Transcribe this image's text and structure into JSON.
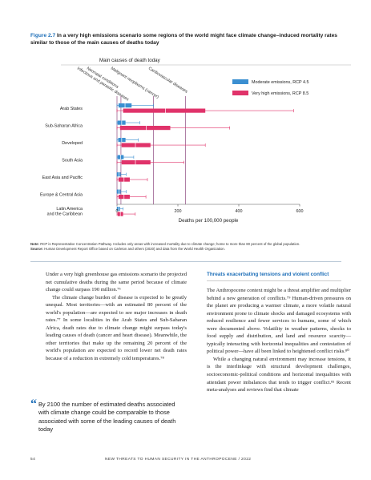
{
  "figure": {
    "number": "Figure 2.7",
    "title": "In a very high emissions scenario some regions of the world might face climate change–induced mortality rates similar to those of the main causes of deaths today"
  },
  "chart_data": {
    "type": "bar",
    "orientation": "horizontal",
    "xlabel": "Deaths per 100,000 people",
    "xlim": [
      0,
      600
    ],
    "xticks": [
      0,
      200,
      400,
      600
    ],
    "categories": [
      "Arab States",
      "Sub-Saharan Africa",
      "Developed",
      "South Asia",
      "East Asia and Pacific",
      "Europe & Central Asia",
      "Latin America and the Caribbean"
    ],
    "series": [
      {
        "name": "Moderate emissions, RCP 4.5",
        "color": "#3b8fd1",
        "values": [
          48,
          28,
          28,
          22,
          12,
          12,
          10
        ],
        "low": [
          5,
          2,
          4,
          2,
          0,
          0,
          0
        ],
        "high": [
          120,
          75,
          70,
          55,
          30,
          30,
          20
        ]
      },
      {
        "name": "Very high emissions, RCP 8.5",
        "color": "#e0336a",
        "values": [
          290,
          175,
          110,
          110,
          42,
          42,
          20
        ],
        "low": [
          20,
          10,
          15,
          15,
          5,
          5,
          2
        ],
        "high": [
          580,
          370,
          290,
          220,
          100,
          95,
          60
        ]
      }
    ],
    "reference_lines": [
      {
        "label": "Infectious and parasitic diseases",
        "value": 0
      },
      {
        "label": "Neonatal conditions",
        "value": 13
      },
      {
        "label": "Malignant neoplasms (cancer)",
        "value": 120
      },
      {
        "label": "Cardiovascular diseases",
        "value": 225
      }
    ],
    "annotation_header": "Main causes of death today",
    "legend_position": "top-right",
    "grid": false
  },
  "notes": {
    "note_label": "Note:",
    "note": "RCP is Representative Concentration Pathway. Includes only areas with increased mortality due to climate change; home to more than 80 percent of the global population.",
    "source_label": "Source:",
    "source": "Human Development Report Office based on Carleton and others (2020) and data from the World Health Organization."
  },
  "left_column": {
    "p1": "Under a very high greenhouse gas emissions scenario the projected net cumulative deaths during the same period because of climate change could surpass 190 million.⁷⁶",
    "p2": "The climate change burden of disease is expected to be greatly unequal. Most territories—with an estimated 80 percent of the world's population—are expected to see major increases in death rates.⁷⁷ In some localities in the Arab States and Sub-Saharan Africa, death rates due to climate change might surpass today's leading causes of death (cancer and heart disease). Meanwhile, the other territories that make up the remaining 20 percent of the world's population are expected to record lower net death rates because of a reduction in extremely cold temperatures.⁷⁸"
  },
  "pull_quote": {
    "mark": "“",
    "text": "By 2100 the number of estimated deaths associated with climate change could be comparable to those associated with some of the leading causes of death today"
  },
  "right_column": {
    "heading": "Threats exacerbating tensions and violent conflict",
    "p1": "The Anthropocene context might be a threat amplifier and multiplier behind a new generation of conflicts.⁷⁹ Human-driven pressures on the planet are producing a warmer climate, a more volatile natural environment prone to climate shocks and damaged ecosystems with reduced resilience and fewer services to humans, some of which were documented above. Volatility in weather patterns, shocks to food supply and distribution, and land and resource scarcity—typically interacting with horizontal inequalities and contestation of political power—have all been linked to heightened conflict risks.⁸⁰",
    "p2": "While a changing natural environment may increase tensions, it is the interlinkage with structural development challenges, socioeconomic-political conditions and horizontal inequalities with attendant power imbalances that tends to trigger conflict.⁸¹ Recent meta-analyses and reviews find that climate"
  },
  "footer": {
    "page_number": "54",
    "running_title": "NEW THREATS TO HUMAN SECURITY IN THE ANTHROPOCENE / 2022"
  }
}
